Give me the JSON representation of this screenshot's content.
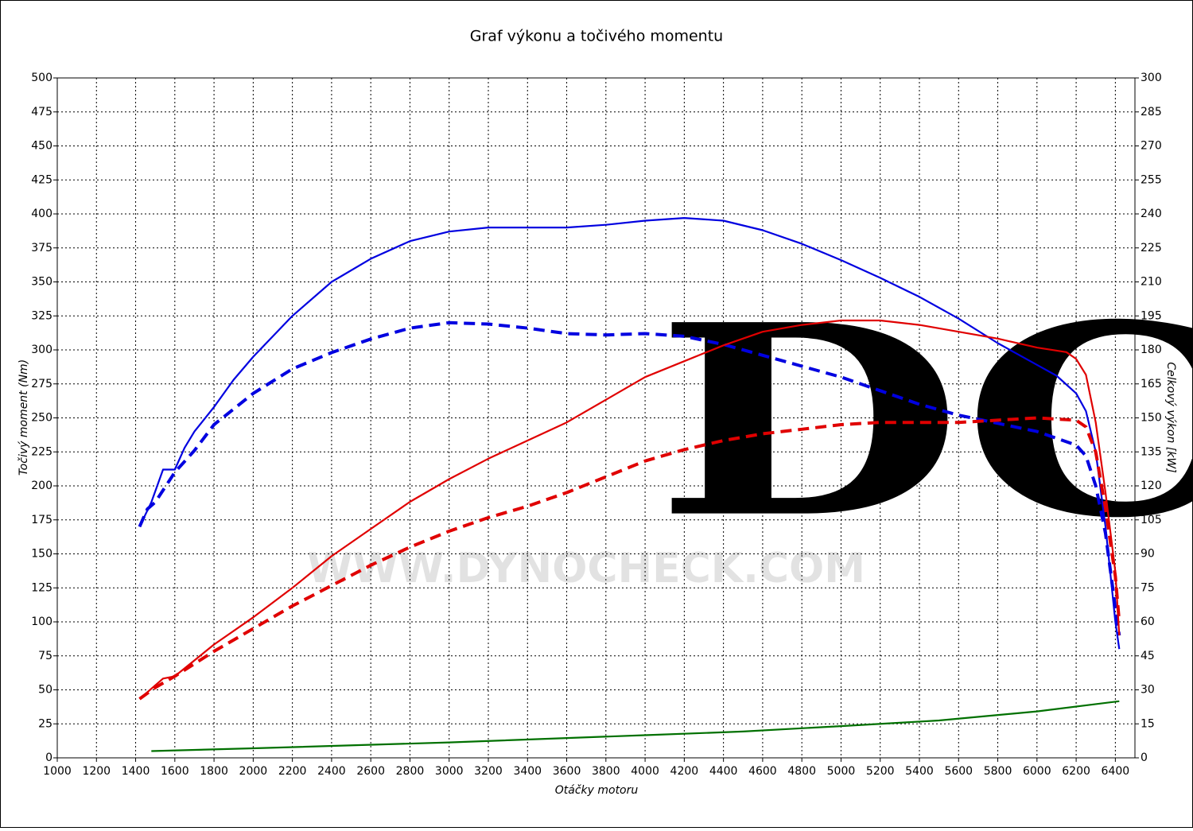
{
  "chart_data": {
    "type": "line",
    "title": "Graf výkonu a točivého momentu",
    "xlabel": "Otáčky motoru",
    "ylabel": "Točivý moment (Nm)",
    "y2label": "Celkový výkon [kW]",
    "watermark": "DC",
    "watermark_url": "WWW.DYNOCHECK.COM",
    "grid": true,
    "xlim": [
      1000,
      6500
    ],
    "xticks": [
      1000,
      1200,
      1400,
      1600,
      1800,
      2000,
      2200,
      2400,
      2600,
      2800,
      3000,
      3200,
      3400,
      3600,
      3800,
      4000,
      4200,
      4400,
      4600,
      4800,
      5000,
      5200,
      5400,
      5600,
      5800,
      6000,
      6200,
      6400
    ],
    "ylim": [
      0,
      500
    ],
    "yticks": [
      0,
      25,
      50,
      75,
      100,
      125,
      150,
      175,
      200,
      225,
      250,
      275,
      300,
      325,
      350,
      375,
      400,
      425,
      450,
      475,
      500
    ],
    "y2lim": [
      0,
      300
    ],
    "y2ticks": [
      0,
      15,
      30,
      45,
      60,
      75,
      90,
      105,
      120,
      135,
      150,
      165,
      180,
      195,
      210,
      225,
      240,
      255,
      270,
      285,
      300
    ],
    "series": [
      {
        "color": "#0000e0",
        "line_style": "solid",
        "axis": "y",
        "x": [
          1420,
          1480,
          1540,
          1600,
          1650,
          1700,
          1800,
          1900,
          2000,
          2200,
          2400,
          2600,
          2800,
          3000,
          3200,
          3400,
          3600,
          3800,
          4000,
          4200,
          4400,
          4600,
          4800,
          5000,
          5200,
          5400,
          5600,
          5800,
          6000,
          6100,
          6200,
          6250,
          6300,
          6350,
          6400,
          6420
        ],
        "values": [
          170,
          188,
          212,
          212,
          228,
          240,
          258,
          278,
          295,
          325,
          350,
          367,
          380,
          387,
          390,
          390,
          390,
          392,
          395,
          397,
          395,
          388,
          378,
          366,
          353,
          339,
          323,
          305,
          289,
          281,
          268,
          255,
          225,
          170,
          100,
          80
        ]
      },
      {
        "color": "#0000e0",
        "line_style": "dashed",
        "axis": "y",
        "x": [
          1420,
          1460,
          1500,
          1600,
          1700,
          1800,
          2000,
          2200,
          2400,
          2600,
          2800,
          3000,
          3200,
          3400,
          3600,
          3800,
          4000,
          4200,
          4400,
          4600,
          4800,
          5000,
          5200,
          5400,
          5600,
          5800,
          6000,
          6200,
          6250,
          6300,
          6350,
          6400,
          6420
        ],
        "values": [
          170,
          183,
          188,
          210,
          226,
          245,
          268,
          286,
          298,
          308,
          316,
          320,
          319,
          316,
          312,
          311,
          312,
          310,
          304,
          296,
          288,
          280,
          270,
          260,
          252,
          246,
          240,
          230,
          222,
          200,
          165,
          110,
          90
        ]
      },
      {
        "color": "#e00000",
        "line_style": "solid",
        "axis": "y2",
        "x": [
          1420,
          1540,
          1600,
          1800,
          2000,
          2200,
          2400,
          2600,
          2800,
          3000,
          3200,
          3400,
          3600,
          3800,
          4000,
          4200,
          4400,
          4600,
          4800,
          5000,
          5200,
          5400,
          5600,
          5800,
          6000,
          6150,
          6200,
          6250,
          6300,
          6350,
          6400,
          6420
        ],
        "values": [
          26,
          35,
          36,
          50,
          62,
          75,
          89,
          101,
          113,
          123,
          132,
          140,
          148,
          158,
          168,
          175,
          182,
          188,
          191,
          193,
          193,
          191,
          188,
          185,
          181,
          179,
          176,
          169,
          148,
          117,
          82,
          54
        ]
      },
      {
        "color": "#e00000",
        "line_style": "dashed",
        "axis": "y2",
        "x": [
          1420,
          1500,
          1600,
          1800,
          2000,
          2200,
          2400,
          2600,
          2800,
          3000,
          3200,
          3400,
          3600,
          3800,
          4000,
          4200,
          4400,
          4600,
          4800,
          5000,
          5200,
          5400,
          5600,
          5800,
          6000,
          6200,
          6250,
          6300,
          6350,
          6400,
          6420
        ],
        "values": [
          26,
          31,
          36,
          47,
          57,
          67,
          76,
          85,
          93,
          100,
          106,
          111,
          117,
          124,
          131,
          136,
          140,
          143,
          145,
          147,
          148,
          148,
          148,
          149,
          150,
          149,
          146,
          135,
          110,
          80,
          60
        ]
      },
      {
        "color": "#007000",
        "line_style": "solid",
        "axis": "y2",
        "x": [
          1480,
          2000,
          3000,
          4000,
          4500,
          5000,
          5500,
          6000,
          6420
        ],
        "values": [
          3,
          4.2,
          6.8,
          10,
          11.6,
          14,
          16.5,
          20.5,
          25
        ]
      }
    ]
  }
}
